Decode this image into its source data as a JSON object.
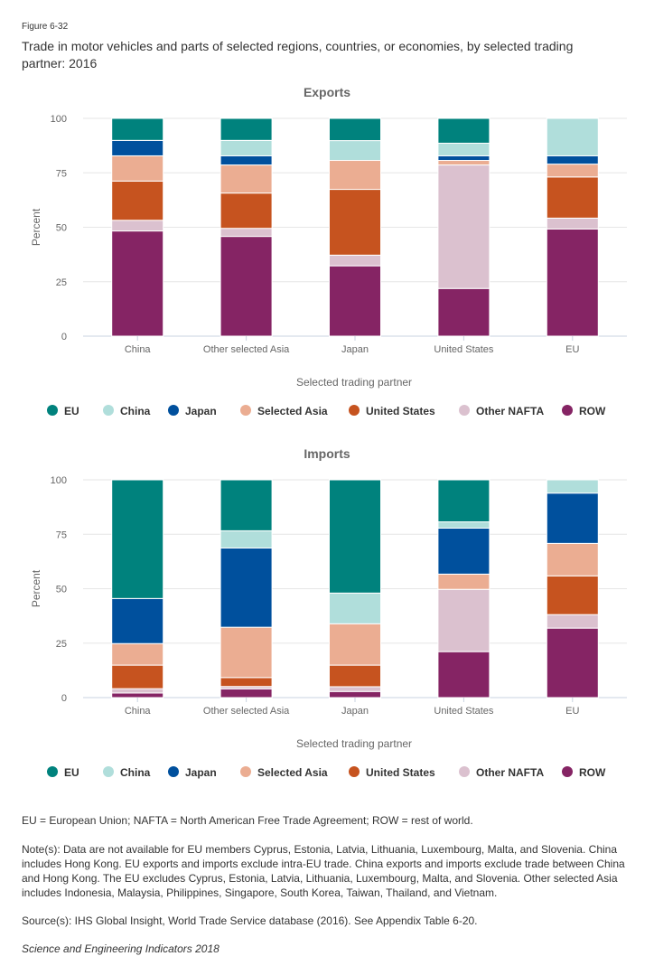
{
  "figure_label": "Figure 6-32",
  "title": "Trade in motor vehicles and parts of selected regions, countries, or economies, by selected trading partner: 2016",
  "colors": {
    "EU": "#00827d",
    "China": "#b0dedb",
    "Japan": "#00509d",
    "Selected Asia": "#ebad92",
    "United States": "#c6531f",
    "Other NAFTA": "#dbc1cf",
    "ROW": "#852464"
  },
  "chart_data": [
    {
      "type": "bar",
      "stacked": true,
      "title": "Exports",
      "xlabel": "Selected trading partner",
      "ylabel": "Percent",
      "ylim": [
        0,
        100
      ],
      "yticks": [
        0,
        25,
        50,
        75,
        100
      ],
      "grid": true,
      "legend_position": "bottom",
      "categories": [
        "China",
        "Other selected Asia",
        "Japan",
        "United States",
        "EU"
      ],
      "series": [
        {
          "name": "ROW",
          "values": [
            48.3,
            45.8,
            32.3,
            21.9,
            49.2
          ]
        },
        {
          "name": "Other NAFTA",
          "values": [
            4.9,
            3.7,
            4.9,
            56.7,
            5.0
          ]
        },
        {
          "name": "United States",
          "values": [
            18.0,
            16.2,
            30.2,
            0,
            18.9
          ]
        },
        {
          "name": "Selected Asia",
          "values": [
            11.6,
            12.9,
            13.3,
            2.1,
            5.9
          ]
        },
        {
          "name": "Japan",
          "values": [
            7.1,
            4.2,
            0,
            2.1,
            3.8
          ]
        },
        {
          "name": "China",
          "values": [
            0,
            7.1,
            9.1,
            5.8,
            17.2
          ]
        },
        {
          "name": "EU",
          "values": [
            10.1,
            10.1,
            10.2,
            11.4,
            0
          ]
        }
      ],
      "legend": [
        "EU",
        "China",
        "Japan",
        "Selected Asia",
        "United States",
        "Other NAFTA",
        "ROW"
      ]
    },
    {
      "type": "bar",
      "stacked": true,
      "title": "Imports",
      "xlabel": "Selected trading partner",
      "ylabel": "Percent",
      "ylim": [
        0,
        100
      ],
      "yticks": [
        0,
        25,
        50,
        75,
        100
      ],
      "grid": true,
      "legend_position": "bottom",
      "categories": [
        "China",
        "Other selected Asia",
        "Japan",
        "United States",
        "EU"
      ],
      "series": [
        {
          "name": "ROW",
          "values": [
            2.1,
            4.0,
            2.8,
            21.1,
            31.9
          ]
        },
        {
          "name": "Other NAFTA",
          "values": [
            2.0,
            1.1,
            2.2,
            28.6,
            6.2
          ]
        },
        {
          "name": "United States",
          "values": [
            10.8,
            4.1,
            9.9,
            0,
            17.8
          ]
        },
        {
          "name": "Selected Asia",
          "values": [
            9.9,
            23.1,
            19.0,
            7.0,
            14.9
          ]
        },
        {
          "name": "Japan",
          "values": [
            20.7,
            36.4,
            0,
            21.1,
            23.1
          ]
        },
        {
          "name": "China",
          "values": [
            0,
            7.9,
            14.1,
            2.9,
            6.1
          ]
        },
        {
          "name": "EU",
          "values": [
            54.5,
            23.4,
            52.0,
            19.3,
            0
          ]
        }
      ],
      "legend": [
        "EU",
        "China",
        "Japan",
        "Selected Asia",
        "United States",
        "Other NAFTA",
        "ROW"
      ]
    }
  ],
  "footnotes": {
    "abbreviations": "EU = European Union; NAFTA = North American Free Trade Agreement; ROW = rest of world.",
    "note": "Note(s): Data are not available for EU members Cyprus, Estonia, Latvia, Lithuania, Luxembourg, Malta, and Slovenia. China includes Hong Kong. EU exports and imports exclude intra-EU trade. China exports and imports exclude trade between China and Hong Kong. The EU excludes Cyprus, Estonia, Latvia, Lithuania, Luxembourg, Malta, and Slovenia. Other selected Asia includes Indonesia, Malaysia, Philippines, Singapore, South Korea, Taiwan, Thailand, and Vietnam.",
    "source": "Source(s): IHS Global Insight, World Trade Service database (2016). See Appendix Table 6-20.",
    "credit": "Science and Engineering Indicators 2018"
  }
}
